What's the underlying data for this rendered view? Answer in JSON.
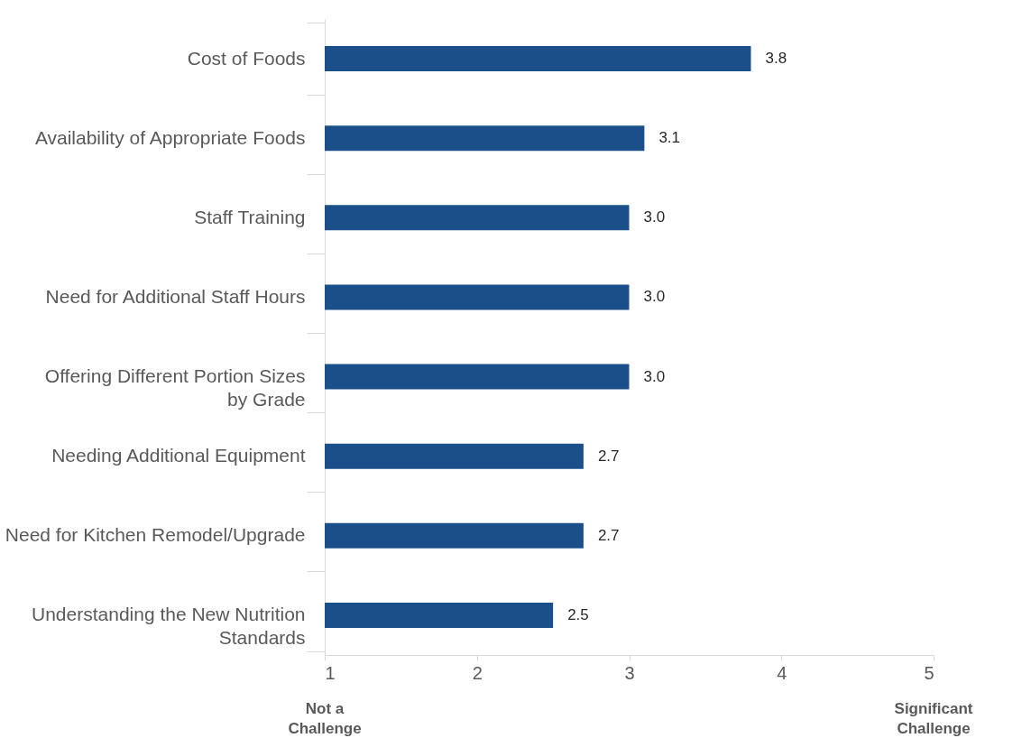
{
  "chart_data": {
    "type": "bar",
    "orientation": "horizontal",
    "categories": [
      "Cost of Foods",
      "Availability of Appropriate Foods",
      "Staff Training",
      "Need for Additional Staff Hours",
      "Offering Different Portion Sizes by Grade",
      "Needing Additional Equipment",
      "Need for Kitchen Remodel/Upgrade",
      "Understanding the New Nutrition Standards"
    ],
    "values": [
      3.8,
      3.1,
      3.0,
      3.0,
      3.0,
      2.7,
      2.7,
      2.5
    ],
    "color": "#1b4f8a",
    "xlim": [
      1,
      5
    ],
    "xticks": [
      1,
      2,
      3,
      4,
      5
    ],
    "value_labels": [
      "3.8",
      "3.1",
      "3.0",
      "3.0",
      "3.0",
      "2.7",
      "2.7",
      "2.5"
    ],
    "grid": false,
    "annotations": [
      "Not a Challenge",
      "Significant Challenge"
    ]
  }
}
